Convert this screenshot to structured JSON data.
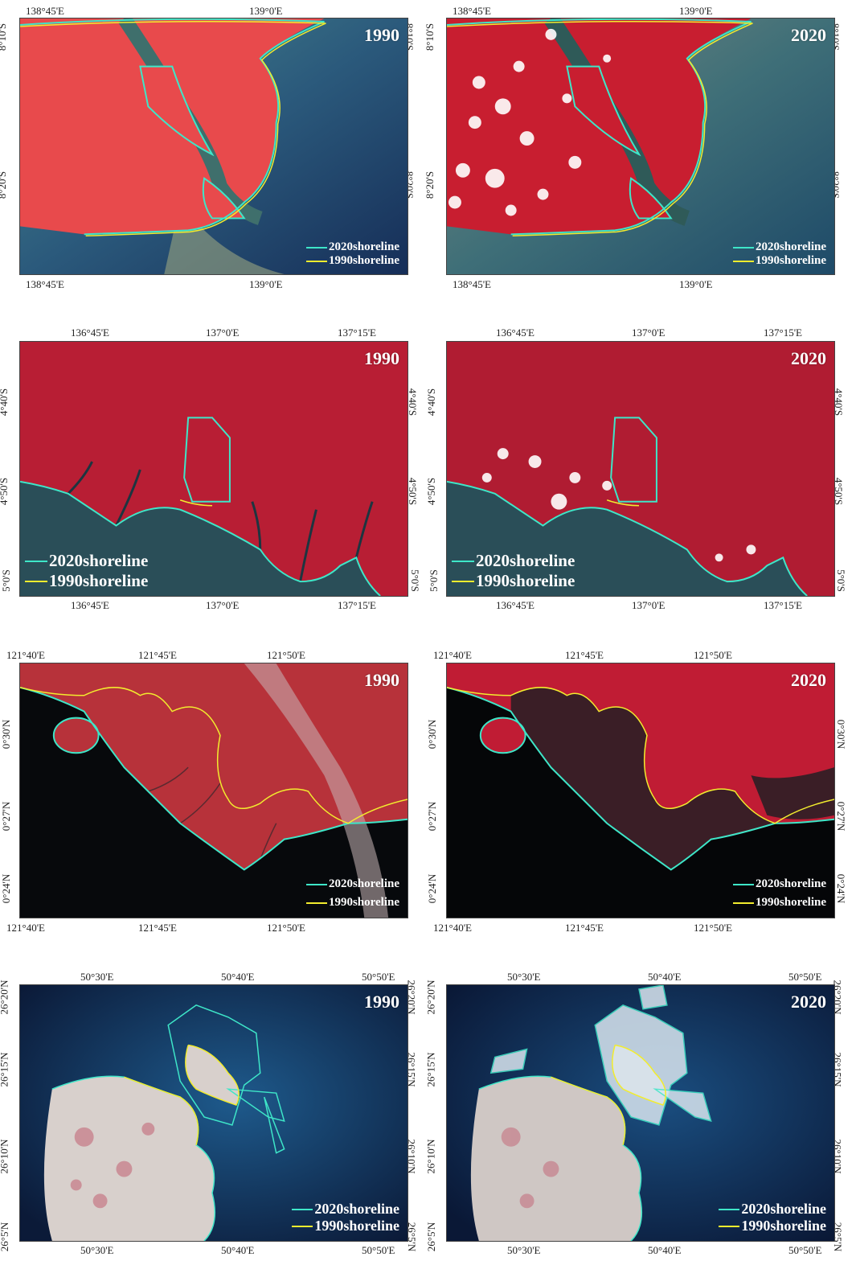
{
  "colors": {
    "shoreline_2020": "#3ee6c8",
    "shoreline_1990": "#f2ec2e",
    "vegetation": "#d21f3a",
    "sea_deep": "#1b3a5a",
    "sea_dark": "#0a0f14"
  },
  "rows": [
    {
      "id": "row1",
      "top_labels": [
        "138°45'E",
        "139°0'E"
      ],
      "bottom_labels": [
        "138°45'E",
        "139°0'E"
      ],
      "left_labels": [
        "8°10'S",
        "8°20'S"
      ],
      "right_labels": [
        "8°10'S",
        "8°20'S"
      ],
      "panels": [
        {
          "year": "1990",
          "legend_2020": "2020shoreline",
          "legend_1990": "1990shoreline"
        },
        {
          "year": "2020",
          "legend_2020": "2020shoreline",
          "legend_1990": "1990shoreline"
        }
      ]
    },
    {
      "id": "row2",
      "top_labels": [
        "136°45'E",
        "137°0'E",
        "137°15'E"
      ],
      "bottom_labels": [
        "136°45'E",
        "137°0'E",
        "137°15'E"
      ],
      "left_labels": [
        "4°40'S",
        "4°50'S",
        "5°0'S"
      ],
      "right_labels": [
        "4°40'S",
        "4°50'S",
        "5°0'S"
      ],
      "panels": [
        {
          "year": "1990",
          "legend_2020": "2020shoreline",
          "legend_1990": "1990shoreline"
        },
        {
          "year": "2020",
          "legend_2020": "2020shoreline",
          "legend_1990": "1990shoreline"
        }
      ]
    },
    {
      "id": "row3",
      "top_labels": [
        "121°40'E",
        "121°45'E",
        "121°50'E"
      ],
      "bottom_labels": [
        "121°40'E",
        "121°45'E",
        "121°50'E"
      ],
      "left_labels": [
        "0°30'N",
        "0°27'N",
        "0°24'N"
      ],
      "right_labels": [
        "0°30'N",
        "0°27'N",
        "0°24'N"
      ],
      "panels": [
        {
          "year": "1990",
          "legend_2020": "2020shoreline",
          "legend_1990": "1990shoreline"
        },
        {
          "year": "2020",
          "legend_2020": "2020shoreline",
          "legend_1990": "1990shoreline"
        }
      ]
    },
    {
      "id": "row4",
      "top_labels": [
        "50°30'E",
        "50°40'E",
        "50°50'E"
      ],
      "bottom_labels": [
        "50°30'E",
        "50°40'E",
        "50°50'E"
      ],
      "left_labels": [
        "26°20'N",
        "26°15'N",
        "26°10'N",
        "26°5'N"
      ],
      "right_labels": [
        "26°20'N",
        "26°15'N",
        "26°10'N",
        "26°5'N"
      ],
      "panels": [
        {
          "year": "1990",
          "legend_2020": "2020shoreline",
          "legend_1990": "1990shoreline"
        },
        {
          "year": "2020",
          "legend_2020": "2020shoreline",
          "legend_1990": "1990shoreline"
        }
      ]
    }
  ]
}
